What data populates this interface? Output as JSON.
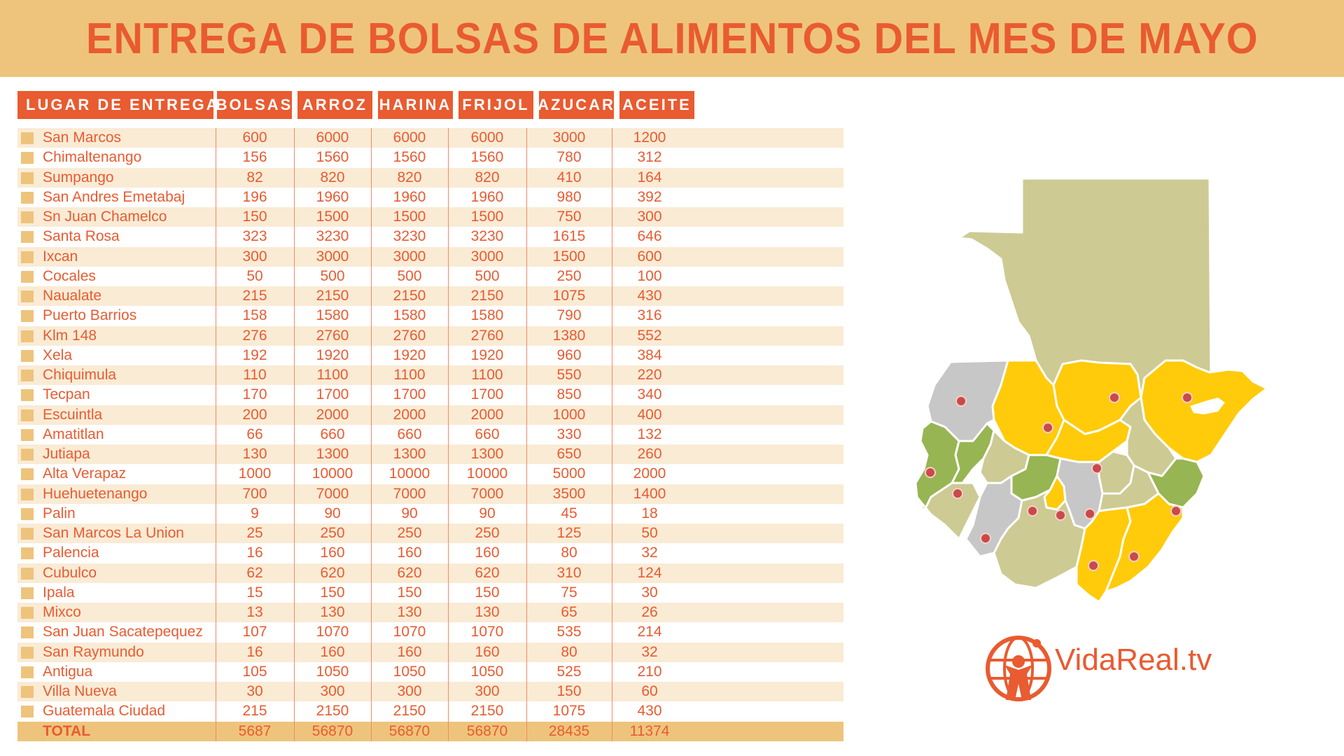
{
  "title": "ENTREGA DE BOLSAS DE ALIMENTOS DEL MES DE MAYO",
  "colors": {
    "accent": "#E95B30",
    "tan": "#EEC47C",
    "row_tint": "#FAEBD5"
  },
  "table": {
    "headers": [
      "LUGAR DE ENTREGA",
      "BOLSAS",
      "ARROZ",
      "HARINA",
      "FRIJOL",
      "AZUCAR",
      "ACEITE"
    ],
    "rows": [
      [
        "San Marcos",
        "600",
        "6000",
        "6000",
        "6000",
        "3000",
        "1200"
      ],
      [
        "Chimaltenango",
        "156",
        "1560",
        "1560",
        "1560",
        "780",
        "312"
      ],
      [
        "Sumpango",
        "82",
        "820",
        "820",
        "820",
        "410",
        "164"
      ],
      [
        "San Andres Emetabaj",
        "196",
        "1960",
        "1960",
        "1960",
        "980",
        "392"
      ],
      [
        "Sn Juan Chamelco",
        "150",
        "1500",
        "1500",
        "1500",
        "750",
        "300"
      ],
      [
        "Santa Rosa",
        "323",
        "3230",
        "3230",
        "3230",
        "1615",
        "646"
      ],
      [
        "Ixcan",
        "300",
        "3000",
        "3000",
        "3000",
        "1500",
        "600"
      ],
      [
        "Cocales",
        "50",
        "500",
        "500",
        "500",
        "250",
        "100"
      ],
      [
        "Naualate",
        "215",
        "2150",
        "2150",
        "2150",
        "1075",
        "430"
      ],
      [
        "Puerto Barrios",
        "158",
        "1580",
        "1580",
        "1580",
        "790",
        "316"
      ],
      [
        "Klm 148",
        "276",
        "2760",
        "2760",
        "2760",
        "1380",
        "552"
      ],
      [
        "Xela",
        "192",
        "1920",
        "1920",
        "1920",
        "960",
        "384"
      ],
      [
        "Chiquimula",
        "110",
        "1100",
        "1100",
        "1100",
        "550",
        "220"
      ],
      [
        "Tecpan",
        "170",
        "1700",
        "1700",
        "1700",
        "850",
        "340"
      ],
      [
        "Escuintla",
        "200",
        "2000",
        "2000",
        "2000",
        "1000",
        "400"
      ],
      [
        "Amatitlan",
        "66",
        "660",
        "660",
        "660",
        "330",
        "132"
      ],
      [
        "Jutiapa",
        "130",
        "1300",
        "1300",
        "1300",
        "650",
        "260"
      ],
      [
        "Alta Verapaz",
        "1000",
        "10000",
        "10000",
        "10000",
        "5000",
        "2000"
      ],
      [
        "Huehuetenango",
        "700",
        "7000",
        "7000",
        "7000",
        "3500",
        "1400"
      ],
      [
        "Palin",
        "9",
        "90",
        "90",
        "90",
        "45",
        "18"
      ],
      [
        "San Marcos La Union",
        "25",
        "250",
        "250",
        "250",
        "125",
        "50"
      ],
      [
        "Palencia",
        "16",
        "160",
        "160",
        "160",
        "80",
        "32"
      ],
      [
        "Cubulco",
        "62",
        "620",
        "620",
        "620",
        "310",
        "124"
      ],
      [
        "Ipala",
        "15",
        "150",
        "150",
        "150",
        "75",
        "30"
      ],
      [
        "Mixco",
        "13",
        "130",
        "130",
        "130",
        "65",
        "26"
      ],
      [
        "San Juan Sacatepequez",
        "107",
        "1070",
        "1070",
        "1070",
        "535",
        "214"
      ],
      [
        "San Raymundo",
        "16",
        "160",
        "160",
        "160",
        "80",
        "32"
      ],
      [
        "Antigua",
        "105",
        "1050",
        "1050",
        "1050",
        "525",
        "210"
      ],
      [
        "Villa Nueva",
        "30",
        "300",
        "300",
        "300",
        "150",
        "60"
      ],
      [
        "Guatemala Ciudad",
        "215",
        "2150",
        "2150",
        "2150",
        "1075",
        "430"
      ]
    ],
    "total": [
      "TOTAL",
      "5687",
      "56870",
      "56870",
      "56870",
      "28435",
      "11374"
    ]
  },
  "map": {
    "region_colors": {
      "yellow": "#FFCB0A",
      "green": "#97B552",
      "gray": "#C7C7C7",
      "olive": "#CDCA94",
      "tan": "#D9D2A6"
    },
    "marker_color": "#C94A4A"
  },
  "logo": {
    "text": "VidaReal.tv",
    "icon": "globe-figure-icon"
  }
}
